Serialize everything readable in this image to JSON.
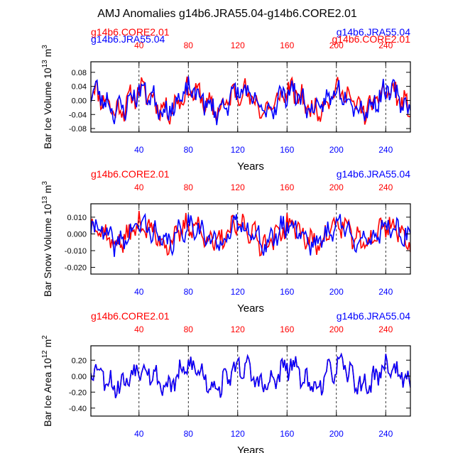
{
  "title": "AMJ Anomalies g14b6.JRA55.04-g14b6.CORE2.01",
  "colors": {
    "red": "#ff0000",
    "blue": "#0000ff",
    "black": "#000000"
  },
  "chart_data": [
    {
      "type": "line",
      "ylabel_main": "Bar Ice Volume 10",
      "ylabel_exp": "13",
      "ylabel_unit": " m",
      "ylabel_unit_exp": "3",
      "xlabel": "Years",
      "xlim": [
        1,
        260
      ],
      "ylim": [
        -0.09,
        0.11
      ],
      "yticks": [
        -0.08,
        -0.04,
        0.0,
        0.04,
        0.08
      ],
      "ytick_labels": [
        "-0.08",
        "-0.04",
        "0.00",
        "0.04",
        "0.08"
      ],
      "xticks": [
        40,
        80,
        120,
        160,
        200,
        240
      ],
      "xtick_labels": [
        "40",
        "80",
        "120",
        "160",
        "200",
        "240"
      ],
      "dashed_lines": [
        40,
        80,
        120,
        160,
        200,
        240
      ],
      "legend_left": "g14b6.CORE2.01",
      "legend_right": "g14b6.JRA55.04",
      "legend_left_overlap": "g14b6.JRA55.04",
      "legend_right_overlap": "g14b6.CORE2.01",
      "series": [
        {
          "name": "g14b6.CORE2.01",
          "color": "#ff0000",
          "amp": 0.05,
          "seed": 11,
          "offset": 0.0
        },
        {
          "name": "g14b6.JRA55.04",
          "color": "#0000ff",
          "amp": 0.05,
          "seed": 23,
          "offset": 0.0
        }
      ]
    },
    {
      "type": "line",
      "ylabel_main": "Bar Snow Volume 10",
      "ylabel_exp": "13",
      "ylabel_unit": " m",
      "ylabel_unit_exp": "3",
      "xlabel": "Years",
      "xlim": [
        1,
        260
      ],
      "ylim": [
        -0.024,
        0.018
      ],
      "yticks": [
        -0.02,
        -0.01,
        0.0,
        0.01
      ],
      "ytick_labels": [
        "-0.020",
        "-0.010",
        "0.000",
        "0.010"
      ],
      "xticks": [
        40,
        80,
        120,
        160,
        200,
        240
      ],
      "xtick_labels": [
        "40",
        "80",
        "120",
        "160",
        "200",
        "240"
      ],
      "dashed_lines": [
        40,
        80,
        120,
        160,
        200,
        240
      ],
      "legend_left": "g14b6.CORE2.01",
      "legend_right": "g14b6.JRA55.04",
      "series": [
        {
          "name": "g14b6.CORE2.01",
          "color": "#ff0000",
          "amp": 0.01,
          "seed": 37,
          "offset": 0.0
        },
        {
          "name": "g14b6.JRA55.04",
          "color": "#0000ff",
          "amp": 0.01,
          "seed": 41,
          "offset": 0.0
        }
      ]
    },
    {
      "type": "line",
      "ylabel_main": "Bar Ice Area 10",
      "ylabel_exp": "12",
      "ylabel_unit": " m",
      "ylabel_unit_exp": "2",
      "xlabel": "Years",
      "xlim": [
        1,
        260
      ],
      "ylim": [
        -0.5,
        0.38
      ],
      "yticks": [
        -0.4,
        -0.2,
        0.0,
        0.2
      ],
      "ytick_labels": [
        "-0.40",
        "-0.20",
        "0.00",
        "0.20"
      ],
      "xticks": [
        40,
        80,
        120,
        160,
        200,
        240
      ],
      "xtick_labels": [
        "40",
        "80",
        "120",
        "160",
        "200",
        "240"
      ],
      "dashed_lines": [
        40,
        80,
        120,
        160,
        200,
        240
      ],
      "legend_left": "g14b6.CORE2.01",
      "legend_right": "g14b6.JRA55.04",
      "series": [
        {
          "name": "g14b6.CORE2.01",
          "color": "#ff0000",
          "amp": 0.22,
          "seed": 53,
          "offset": 0.0
        },
        {
          "name": "g14b6.JRA55.04",
          "color": "#0000ff",
          "amp": 0.22,
          "seed": 53,
          "offset": 0.0
        }
      ]
    }
  ]
}
